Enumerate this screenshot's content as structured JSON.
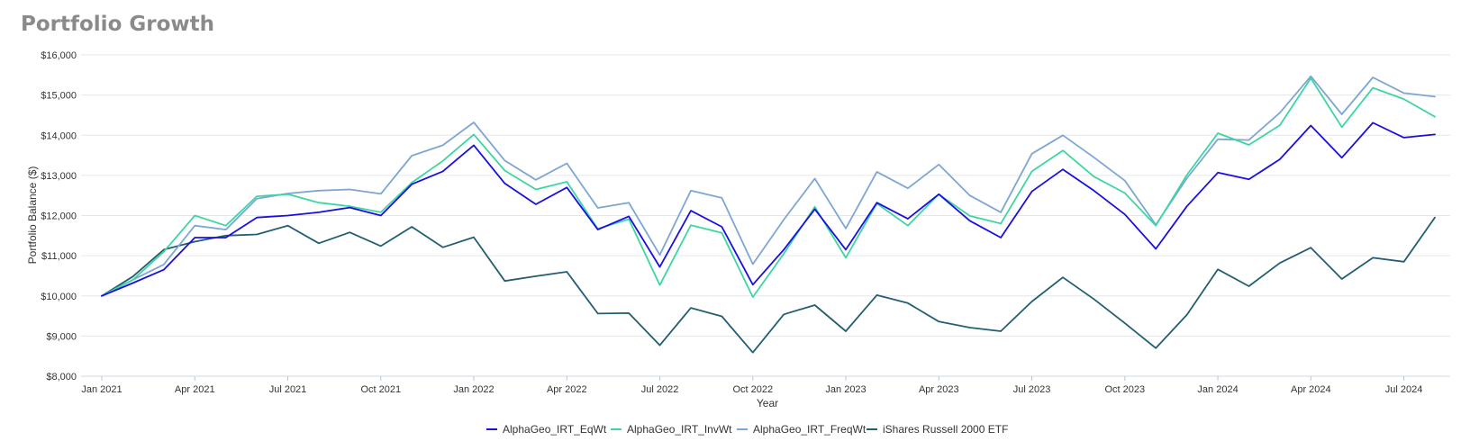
{
  "chart_data": {
    "type": "line",
    "title": "Portfolio Growth",
    "xlabel": "Year",
    "ylabel": "Portfolio Balance ($)",
    "ylim": [
      8000,
      16000
    ],
    "yticks": [
      "$8,000",
      "$9,000",
      "$10,000",
      "$11,000",
      "$12,000",
      "$13,000",
      "$14,000",
      "$15,000",
      "$16,000"
    ],
    "xticks": [
      "Jan 2021",
      "Apr 2021",
      "Jul 2021",
      "Oct 2021",
      "Jan 2022",
      "Apr 2022",
      "Jul 2022",
      "Oct 2022",
      "Jan 2023",
      "Apr 2023",
      "Jul 2023",
      "Oct 2023",
      "Jan 2024",
      "Apr 2024",
      "Jul 2024"
    ],
    "grid": true,
    "legend_position": "bottom",
    "x": [
      "Jan 2021",
      "Feb 2021",
      "Mar 2021",
      "Apr 2021",
      "May 2021",
      "Jun 2021",
      "Jul 2021",
      "Aug 2021",
      "Sep 2021",
      "Oct 2021",
      "Nov 2021",
      "Dec 2021",
      "Jan 2022",
      "Feb 2022",
      "Mar 2022",
      "Apr 2022",
      "May 2022",
      "Jun 2022",
      "Jul 2022",
      "Aug 2022",
      "Sep 2022",
      "Oct 2022",
      "Nov 2022",
      "Dec 2022",
      "Jan 2023",
      "Feb 2023",
      "Mar 2023",
      "Apr 2023",
      "May 2023",
      "Jun 2023",
      "Jul 2023",
      "Aug 2023",
      "Sep 2023",
      "Oct 2023",
      "Nov 2023",
      "Dec 2023",
      "Jan 2024",
      "Feb 2024",
      "Mar 2024",
      "Apr 2024",
      "May 2024",
      "Jun 2024",
      "Jul 2024",
      "Aug 2024"
    ],
    "series": [
      {
        "name": "AlphaGeo_IRT_EqWt",
        "color": "#1a0fe0",
        "values": [
          10000,
          10320,
          10650,
          11450,
          11450,
          11950,
          12000,
          12080,
          12200,
          12000,
          12780,
          13100,
          13750,
          12800,
          12280,
          12700,
          11650,
          11980,
          10720,
          12120,
          11720,
          10280,
          11150,
          12160,
          11150,
          12320,
          11920,
          12530,
          11870,
          11450,
          12600,
          13150,
          12620,
          12030,
          11170,
          12230,
          13070,
          12900,
          13400,
          14240,
          13440,
          14310,
          13940,
          14020
        ]
      },
      {
        "name": "AlphaGeo_IRT_InvWt",
        "color": "#3dd6a3",
        "values": [
          10000,
          10400,
          11100,
          12000,
          11750,
          12480,
          12530,
          12320,
          12230,
          12080,
          12820,
          13360,
          14020,
          13120,
          12650,
          12840,
          11670,
          11910,
          10270,
          11760,
          11570,
          9970,
          11050,
          12220,
          10950,
          12300,
          11750,
          12530,
          11990,
          11800,
          13100,
          13620,
          12970,
          12560,
          11750,
          13010,
          14050,
          13760,
          14250,
          15420,
          14200,
          15180,
          14900,
          14460
        ]
      },
      {
        "name": "AlphaGeo_IRT_FreqWt",
        "color": "#7da6d4",
        "values": [
          10000,
          10400,
          10780,
          11750,
          11650,
          12420,
          12550,
          12620,
          12650,
          12540,
          13490,
          13750,
          14320,
          13370,
          12890,
          13300,
          12190,
          12320,
          11020,
          12620,
          12440,
          10790,
          11900,
          12920,
          11680,
          13090,
          12680,
          13270,
          12500,
          12080,
          13540,
          14000,
          13450,
          12870,
          11770,
          12930,
          13900,
          13880,
          14560,
          15470,
          14520,
          15440,
          15050,
          14960
        ]
      },
      {
        "name": "iShares Russell 2000 ETF",
        "color": "#235e72",
        "values": [
          10000,
          10480,
          11150,
          11350,
          11500,
          11530,
          11750,
          11310,
          11580,
          11240,
          11720,
          11210,
          11460,
          10370,
          10490,
          10600,
          9560,
          9570,
          8770,
          9700,
          9490,
          8590,
          9540,
          9770,
          9120,
          10020,
          9820,
          9360,
          9210,
          9120,
          9860,
          10460,
          9920,
          9320,
          8700,
          9530,
          10660,
          10240,
          10820,
          11200,
          10420,
          10950,
          10850,
          11950
        ]
      }
    ]
  }
}
